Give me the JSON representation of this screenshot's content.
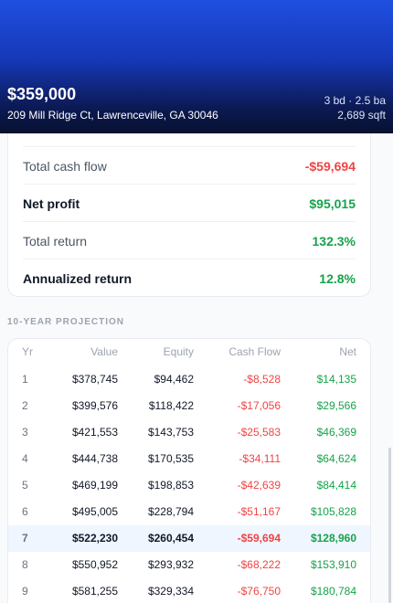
{
  "header": {
    "price": "$359,000",
    "address": "209 Mill Ridge Ct, Lawrenceville, GA 30046",
    "beds_baths": "3 bd · 2.5 ba",
    "sqft": "2,689 sqft"
  },
  "summary": {
    "rows": [
      {
        "label": "Total cash flow",
        "value": "-$59,694"
      },
      {
        "label": "Net profit",
        "value": "$95,015"
      },
      {
        "label": "Total return",
        "value": "132.3%"
      },
      {
        "label": "Annualized return",
        "value": "12.8%"
      }
    ]
  },
  "projection": {
    "title": "10-YEAR PROJECTION",
    "columns": [
      "Yr",
      "Value",
      "Equity",
      "Cash Flow",
      "Net"
    ],
    "rows": [
      [
        "1",
        "$378,745",
        "$94,462",
        "-$8,528",
        "$14,135"
      ],
      [
        "2",
        "$399,576",
        "$118,422",
        "-$17,056",
        "$29,566"
      ],
      [
        "3",
        "$421,553",
        "$143,753",
        "-$25,583",
        "$46,369"
      ],
      [
        "4",
        "$444,738",
        "$170,535",
        "-$34,111",
        "$64,624"
      ],
      [
        "5",
        "$469,199",
        "$198,853",
        "-$42,639",
        "$84,414"
      ],
      [
        "6",
        "$495,005",
        "$228,794",
        "-$51,167",
        "$105,828"
      ],
      [
        "7",
        "$522,230",
        "$260,454",
        "-$59,694",
        "$128,960"
      ],
      [
        "8",
        "$550,952",
        "$293,932",
        "-$68,222",
        "$153,910"
      ],
      [
        "9",
        "$581,255",
        "$329,334",
        "-$76,750",
        "$180,784"
      ]
    ]
  }
}
